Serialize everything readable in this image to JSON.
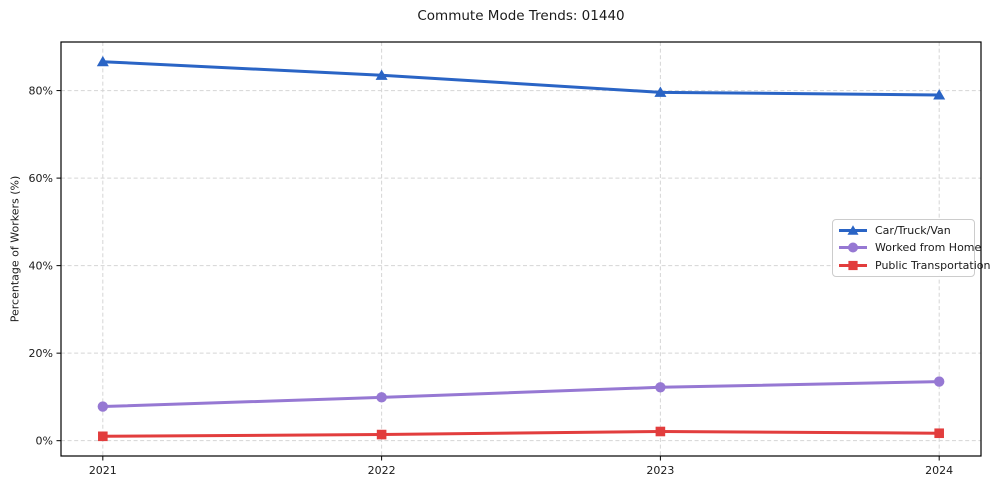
{
  "chart_data": {
    "type": "line",
    "title": "Commute Mode Trends: 01440",
    "xlabel": "",
    "ylabel": "Percentage of Workers (%)",
    "categories": [
      2021,
      2022,
      2023,
      2024
    ],
    "x_tick_labels": [
      "2021",
      "2022",
      "2023",
      "2024"
    ],
    "y_ticks": [
      0,
      20,
      40,
      60,
      80
    ],
    "y_tick_labels": [
      "0%",
      "20%",
      "40%",
      "60%",
      "80%"
    ],
    "xlim": [
      2020.85,
      2024.15
    ],
    "ylim": [
      -3.5,
      91.1
    ],
    "grid": true,
    "grid_style": "dashed",
    "legend_position": "center-right",
    "series": [
      {
        "name": "Car/Truck/Van",
        "marker": "triangle",
        "color": "#2a64c5",
        "values": [
          86.6,
          83.5,
          79.6,
          79.0
        ]
      },
      {
        "name": "Worked from Home",
        "marker": "circle",
        "color": "#9678d3",
        "values": [
          7.8,
          9.9,
          12.2,
          13.5
        ]
      },
      {
        "name": "Public Transportation",
        "marker": "square",
        "color": "#e23d3d",
        "values": [
          1.0,
          1.4,
          2.1,
          1.7
        ]
      }
    ]
  },
  "colors": {
    "background": "#ffffff",
    "spine": "#000000",
    "grid": "#d5d5d5",
    "text": "#1a1a1a",
    "legend_border": "#cccccc",
    "series_blue": "#2a64c5",
    "series_purple": "#9678d3",
    "series_red": "#e23d3d"
  }
}
